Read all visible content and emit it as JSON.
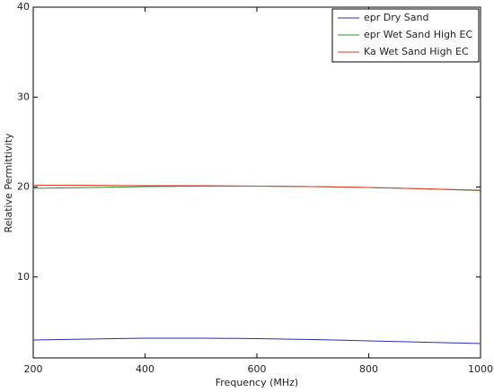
{
  "chart_data": {
    "type": "line",
    "x_label": "Frequency (MHz)",
    "y_label": "Relative Permittivity",
    "x": [
      200,
      300,
      400,
      500,
      600,
      700,
      800,
      900,
      1000
    ],
    "series": [
      {
        "name": "epr Dry Sand",
        "color": "#2b2bb0",
        "values": [
          3.0,
          3.1,
          3.2,
          3.2,
          3.15,
          3.05,
          2.9,
          2.75,
          2.6
        ]
      },
      {
        "name": "epr Wet Sand High EC",
        "color": "#2a8a2a",
        "values": [
          19.85,
          19.95,
          20.05,
          20.1,
          20.1,
          20.05,
          19.95,
          19.8,
          19.6
        ]
      },
      {
        "name": "Ka Wet Sand High EC",
        "color": "#e03a2a",
        "values": [
          20.2,
          20.2,
          20.15,
          20.15,
          20.1,
          20.05,
          19.95,
          19.8,
          19.65
        ]
      }
    ],
    "xlim": [
      200,
      1000
    ],
    "xticks": [
      200,
      400,
      600,
      800,
      1000
    ],
    "ylim": [
      1,
      40
    ],
    "yticks": [
      10,
      20,
      30,
      40
    ],
    "grid": false,
    "legend": "top-right"
  }
}
